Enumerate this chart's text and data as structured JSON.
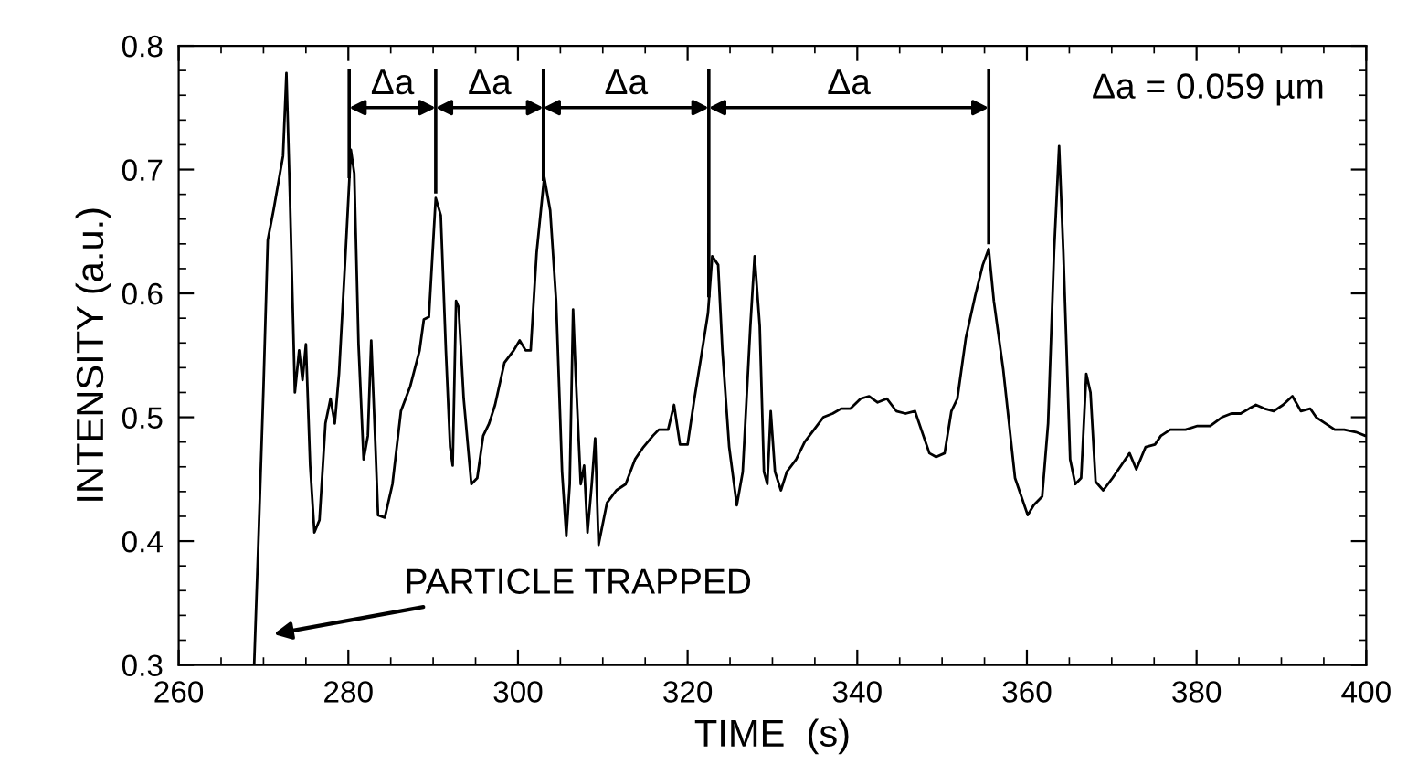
{
  "chart_data": {
    "type": "line",
    "xlabel": "TIME  (s)",
    "ylabel": "INTENSITY (a.u.)",
    "series": [
      {
        "color": "#000000",
        "x": [
          268.9,
          269.4,
          270.0,
          270.5,
          271.2,
          272.3,
          272.7,
          273.1,
          273.7,
          274.2,
          274.6,
          275.0,
          275.5,
          276.0,
          276.6,
          277.3,
          277.9,
          278.4,
          278.9,
          279.6,
          280.3,
          280.7,
          281.2,
          281.8,
          282.3,
          282.7,
          283.2,
          283.5,
          284.3,
          285.2,
          286.2,
          287.3,
          288.4,
          288.9,
          289.5,
          290.3,
          290.9,
          291.5,
          292.0,
          292.3,
          292.7,
          293.0,
          293.6,
          294.5,
          295.2,
          295.9,
          296.6,
          297.3,
          298.4,
          299.5,
          300.2,
          300.9,
          301.5,
          302.2,
          303.1,
          303.8,
          304.5,
          305.2,
          305.7,
          306.1,
          306.5,
          306.8,
          307.4,
          307.8,
          308.2,
          308.7,
          309.1,
          309.5,
          310.5,
          311.6,
          312.7,
          313.8,
          314.8,
          315.9,
          316.6,
          317.7,
          318.4,
          319.1,
          320.0,
          320.8,
          321.6,
          322.4,
          322.9,
          323.6,
          324.1,
          324.9,
          325.8,
          326.5,
          327.4,
          327.9,
          328.5,
          329.0,
          329.4,
          329.8,
          330.3,
          331.0,
          331.7,
          332.8,
          333.8,
          334.9,
          336.0,
          337.1,
          338.1,
          339.2,
          340.4,
          341.4,
          342.4,
          343.5,
          344.6,
          345.7,
          346.8,
          347.8,
          348.5,
          349.3,
          350.3,
          351.1,
          351.8,
          352.8,
          353.9,
          354.8,
          355.5,
          356.1,
          357.2,
          358.6,
          360.1,
          360.8,
          361.8,
          362.5,
          363.2,
          363.8,
          364.3,
          365.1,
          365.7,
          366.4,
          367.0,
          367.5,
          368.1,
          369.0,
          370.1,
          371.1,
          372.1,
          372.9,
          374.0,
          375.1,
          375.8,
          376.9,
          377.6,
          378.7,
          380.1,
          381.6,
          383.0,
          384.1,
          385.2,
          386.2,
          387.0,
          388.0,
          389.1,
          390.2,
          391.3,
          392.3,
          393.4,
          394.1,
          395.2,
          396.3,
          397.4,
          398.8,
          399.9
        ],
        "values": [
          0.3,
          0.4,
          0.525,
          0.643,
          0.668,
          0.711,
          0.778,
          0.682,
          0.52,
          0.554,
          0.53,
          0.559,
          0.461,
          0.407,
          0.417,
          0.495,
          0.515,
          0.495,
          0.535,
          0.623,
          0.716,
          0.697,
          0.559,
          0.466,
          0.485,
          0.562,
          0.476,
          0.421,
          0.419,
          0.446,
          0.505,
          0.525,
          0.554,
          0.579,
          0.581,
          0.677,
          0.663,
          0.554,
          0.476,
          0.461,
          0.594,
          0.589,
          0.515,
          0.446,
          0.451,
          0.485,
          0.495,
          0.51,
          0.544,
          0.554,
          0.562,
          0.554,
          0.554,
          0.633,
          0.694,
          0.667,
          0.594,
          0.456,
          0.404,
          0.446,
          0.587,
          0.535,
          0.446,
          0.461,
          0.407,
          0.446,
          0.483,
          0.397,
          0.431,
          0.441,
          0.446,
          0.466,
          0.476,
          0.485,
          0.49,
          0.49,
          0.51,
          0.478,
          0.478,
          0.515,
          0.549,
          0.584,
          0.63,
          0.623,
          0.554,
          0.476,
          0.429,
          0.456,
          0.574,
          0.63,
          0.574,
          0.456,
          0.446,
          0.505,
          0.456,
          0.441,
          0.456,
          0.466,
          0.48,
          0.49,
          0.5,
          0.503,
          0.507,
          0.507,
          0.515,
          0.517,
          0.512,
          0.515,
          0.505,
          0.503,
          0.505,
          0.485,
          0.471,
          0.468,
          0.471,
          0.505,
          0.515,
          0.564,
          0.598,
          0.623,
          0.636,
          0.594,
          0.539,
          0.451,
          0.421,
          0.429,
          0.436,
          0.495,
          0.633,
          0.719,
          0.633,
          0.466,
          0.446,
          0.451,
          0.535,
          0.52,
          0.448,
          0.441,
          0.451,
          0.461,
          0.471,
          0.458,
          0.476,
          0.478,
          0.485,
          0.49,
          0.49,
          0.49,
          0.493,
          0.493,
          0.5,
          0.503,
          0.503,
          0.507,
          0.51,
          0.507,
          0.505,
          0.51,
          0.517,
          0.505,
          0.507,
          0.5,
          0.495,
          0.49,
          0.49,
          0.488,
          0.485
        ]
      }
    ],
    "xlim": [
      260,
      400
    ],
    "xticks": [
      260,
      280,
      300,
      320,
      340,
      360,
      380,
      400
    ],
    "ylim": [
      0.3,
      0.8
    ],
    "yticks": [
      0.3,
      0.4,
      0.5,
      0.6,
      0.7,
      0.8
    ],
    "ref_lines": [
      {
        "axis": "x",
        "value": 280.1
      },
      {
        "axis": "x",
        "value": 290.3
      },
      {
        "axis": "x",
        "value": 303.0
      },
      {
        "axis": "x",
        "value": 322.5
      },
      {
        "axis": "x",
        "value": 355.5
      }
    ],
    "annotations": [
      "Δa",
      "Δa",
      "Δa",
      "Δa",
      "PARTICLE TRAPPED",
      "Δa = 0.059 µm"
    ],
    "grid": false,
    "legend": false,
    "marker": "none",
    "line_style": "solid"
  }
}
